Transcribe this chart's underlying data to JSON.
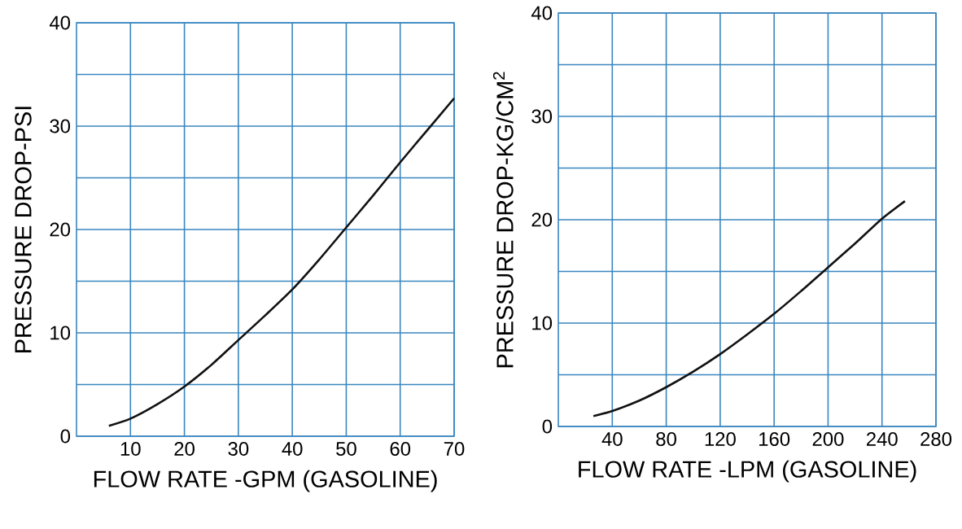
{
  "chart_data": [
    {
      "type": "line",
      "xlabel": "FLOW RATE -GPM (GASOLINE)",
      "ylabel": "PRESSURE DROP-PSI",
      "xlim": [
        0,
        70
      ],
      "ylim": [
        0,
        40
      ],
      "xticks": [
        10,
        20,
        30,
        40,
        50,
        60,
        70
      ],
      "yticks": [
        0,
        {
          "value": 5,
          "label": null
        },
        10,
        {
          "value": 15,
          "label": null
        },
        20,
        {
          "value": 25,
          "label": null
        },
        30,
        {
          "value": 35,
          "label": null
        },
        40
      ],
      "grid": true,
      "marker": "none",
      "line_style": "solid",
      "series": [
        {
          "color": "#111111",
          "x": [
            6,
            10,
            15,
            20,
            25,
            30,
            35,
            40,
            45,
            50,
            55,
            60,
            65,
            70
          ],
          "values": [
            1.0,
            1.7,
            3.1,
            4.8,
            6.9,
            9.3,
            11.7,
            14.2,
            17.1,
            20.2,
            23.3,
            26.5,
            29.6,
            32.7
          ]
        }
      ]
    },
    {
      "type": "line",
      "xlabel": "FLOW RATE -LPM (GASOLINE)",
      "ylabel": "PRESSURE DROP-KG/CM$^{2}$",
      "xlim": [
        0,
        280
      ],
      "ylim": [
        0,
        40
      ],
      "xticks": [
        40,
        80,
        120,
        160,
        200,
        240,
        280
      ],
      "yticks": [
        0,
        {
          "value": 5,
          "label": null
        },
        10,
        {
          "value": 15,
          "label": null
        },
        20,
        {
          "value": 25,
          "label": null
        },
        30,
        {
          "value": 35,
          "label": null
        },
        40
      ],
      "grid": true,
      "marker": "none",
      "line_style": "solid",
      "series": [
        {
          "color": "#111111",
          "x": [
            26,
            40,
            60,
            80,
            100,
            120,
            140,
            160,
            180,
            200,
            220,
            240,
            257
          ],
          "values": [
            1.0,
            1.5,
            2.5,
            3.8,
            5.3,
            7.0,
            8.9,
            10.9,
            13.1,
            15.4,
            17.7,
            20.1,
            21.8
          ]
        }
      ]
    }
  ]
}
